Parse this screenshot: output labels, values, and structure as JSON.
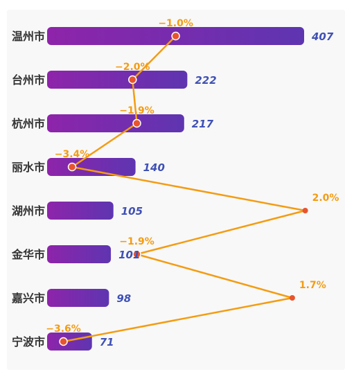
{
  "chart_data": {
    "type": "bar",
    "orientation": "horizontal",
    "categories": [
      "温州市",
      "台州市",
      "杭州市",
      "丽水市",
      "湖州市",
      "金华市",
      "嘉兴市",
      "宁波市"
    ],
    "series": [
      {
        "type": "bar",
        "values": [
          407,
          222,
          217,
          140,
          105,
          101,
          98,
          71
        ]
      },
      {
        "type": "line",
        "values": [
          -1.0,
          -2.0,
          -1.9,
          -3.4,
          2.0,
          -1.9,
          1.7,
          -3.6
        ],
        "labels": [
          "−1.0%",
          "−2.0%",
          "−1.9%",
          "−3.4%",
          "2.0%",
          "−1.9%",
          "1.7%",
          "−3.6%"
        ]
      }
    ],
    "xlim_bar": [
      0,
      407
    ],
    "xlim_line": [
      -4.7,
      2.6
    ],
    "grid": false,
    "legend": "none",
    "colors": {
      "bar_start": "#8e24aa",
      "bar_end": "#5e35b1",
      "line": "#f39c12",
      "point": "#e8542e",
      "value": "#3f51b5",
      "category": "#333333"
    }
  }
}
